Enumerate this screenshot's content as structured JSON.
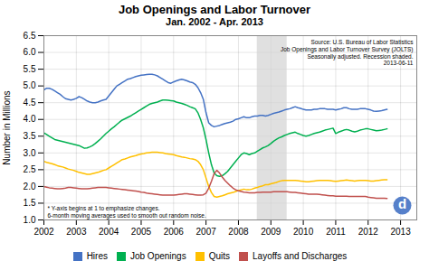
{
  "chart_data": {
    "type": "line",
    "title": "Job Openings and Labor Turnover",
    "subtitle": "Jan. 2002 - Apr. 2013",
    "y_label": "Number in Millions",
    "xlim": [
      2002.0,
      2013.5
    ],
    "xticks": [
      2002,
      2003,
      2004,
      2005,
      2006,
      2007,
      2008,
      2009,
      2010,
      2011,
      2012,
      2013
    ],
    "ylim": [
      1.0,
      6.5
    ],
    "yticks": [
      {
        "value": 1.0,
        "label": "1.0"
      },
      1.5,
      {
        "value": 2.0,
        "label": "2.0"
      },
      2.5,
      {
        "value": 3.0,
        "label": "3.0"
      },
      3.5,
      {
        "value": 4.0,
        "label": "4.0"
      },
      4.5,
      {
        "value": 5.0,
        "label": "5.0"
      },
      5.5,
      {
        "value": 6.0,
        "label": "6.0"
      },
      6.5
    ],
    "grid": true,
    "legend": "bottom",
    "shaded_span": {
      "start": 2008.58,
      "end": 2009.5
    },
    "annotations": [
      {
        "text": "Source: U.S. Bureau of Labor Statistics\nJob Openings and Labor Turnover Survey (JOLTS)\nSeasonally adjusted. Recession shaded.\n2013-06-11"
      },
      {
        "text": "* Y-axis begins at 1 to emphasize changes.\n6-month moving averages used to smooth out random noise."
      },
      {
        "text": "d",
        "color": "#4472C4"
      }
    ],
    "x": [
      2002.0,
      2002.0833333333,
      2002.1666666667,
      2002.25,
      2002.3333333333,
      2002.4166666667,
      2002.5,
      2002.5833333333,
      2002.6666666667,
      2002.75,
      2002.8333333333,
      2002.9166666667,
      2003.0,
      2003.0833333333,
      2003.1666666667,
      2003.25,
      2003.3333333333,
      2003.4166666667,
      2003.5,
      2003.5833333333,
      2003.6666666667,
      2003.75,
      2003.8333333333,
      2003.9166666667,
      2004.0,
      2004.0833333333,
      2004.1666666667,
      2004.25,
      2004.3333333333,
      2004.4166666667,
      2004.5,
      2004.5833333333,
      2004.6666666667,
      2004.75,
      2004.8333333333,
      2004.9166666667,
      2005.0,
      2005.0833333333,
      2005.1666666667,
      2005.25,
      2005.3333333333,
      2005.4166666667,
      2005.5,
      2005.5833333333,
      2005.6666666667,
      2005.75,
      2005.8333333333,
      2005.9166666667,
      2006.0,
      2006.0833333333,
      2006.1666666667,
      2006.25,
      2006.3333333333,
      2006.4166666667,
      2006.5,
      2006.5833333333,
      2006.6666666667,
      2006.75,
      2006.8333333333,
      2006.9166666667,
      2007.0,
      2007.0833333333,
      2007.1666666667,
      2007.25,
      2007.3333333333,
      2007.4166666667,
      2007.5,
      2007.5833333333,
      2007.6666666667,
      2007.75,
      2007.8333333333,
      2007.9166666667,
      2008.0,
      2008.0833333333,
      2008.1666666667,
      2008.25,
      2008.3333333333,
      2008.4166666667,
      2008.5,
      2008.5833333333,
      2008.6666666667,
      2008.75,
      2008.8333333333,
      2008.9166666667,
      2009.0,
      2009.0833333333,
      2009.1666666667,
      2009.25,
      2009.3333333333,
      2009.4166666667,
      2009.5,
      2009.5833333333,
      2009.6666666667,
      2009.75,
      2009.8333333333,
      2009.9166666667,
      2010.0,
      2010.0833333333,
      2010.1666666667,
      2010.25,
      2010.3333333333,
      2010.4166666667,
      2010.5,
      2010.5833333333,
      2010.6666666667,
      2010.75,
      2010.8333333333,
      2010.9166666667,
      2011.0,
      2011.0833333333,
      2011.1666666667,
      2011.25,
      2011.3333333333,
      2011.4166666667,
      2011.5,
      2011.5833333333,
      2011.6666666667,
      2011.75,
      2011.8333333333,
      2011.9166666667,
      2012.0,
      2012.0833333333,
      2012.1666666667,
      2012.25,
      2012.3333333333,
      2012.4166666667,
      2012.5,
      2012.5833333333
    ],
    "series": [
      {
        "name": "Hires",
        "color": "#4472C4",
        "values": [
          4.88,
          4.93,
          4.93,
          4.9,
          4.85,
          4.8,
          4.75,
          4.68,
          4.62,
          4.6,
          4.58,
          4.6,
          4.63,
          4.68,
          4.65,
          4.6,
          4.55,
          4.52,
          4.5,
          4.5,
          4.52,
          4.55,
          4.58,
          4.6,
          4.7,
          4.8,
          4.9,
          5.0,
          5.05,
          5.1,
          5.15,
          5.2,
          5.22,
          5.25,
          5.28,
          5.3,
          5.32,
          5.33,
          5.34,
          5.35,
          5.35,
          5.33,
          5.3,
          5.25,
          5.2,
          5.15,
          5.1,
          5.08,
          5.12,
          5.15,
          5.18,
          5.2,
          5.18,
          5.15,
          5.12,
          5.1,
          5.05,
          4.95,
          4.8,
          4.6,
          4.2,
          3.9,
          3.82,
          3.78,
          3.8,
          3.82,
          3.85,
          3.88,
          3.9,
          3.92,
          3.95,
          4.0,
          4.02,
          4.05,
          4.08,
          4.05,
          4.05,
          4.08,
          4.1,
          4.1,
          4.12,
          4.12,
          4.1,
          4.12,
          4.15,
          4.18,
          4.2,
          4.22,
          4.25,
          4.28,
          4.3,
          4.32,
          4.35,
          4.38,
          4.35,
          4.33,
          4.3,
          4.28,
          4.28,
          4.28,
          4.3,
          4.3,
          4.32,
          4.32,
          4.32,
          4.3,
          4.3,
          4.3,
          4.28,
          4.3,
          4.32,
          4.35,
          4.35,
          4.32,
          4.3,
          4.3,
          4.3,
          4.32,
          4.32,
          4.32,
          4.3,
          4.28,
          4.25,
          4.24,
          4.25,
          4.26,
          4.28,
          4.3
        ]
      },
      {
        "name": "Job Openings",
        "color": "#00B050",
        "values": [
          3.6,
          3.55,
          3.5,
          3.45,
          3.4,
          3.38,
          3.36,
          3.34,
          3.32,
          3.3,
          3.28,
          3.26,
          3.24,
          3.22,
          3.18,
          3.14,
          3.15,
          3.18,
          3.22,
          3.28,
          3.35,
          3.42,
          3.5,
          3.58,
          3.65,
          3.72,
          3.78,
          3.85,
          3.92,
          3.98,
          4.02,
          4.06,
          4.1,
          4.15,
          4.2,
          4.25,
          4.3,
          4.35,
          4.4,
          4.45,
          4.48,
          4.5,
          4.52,
          4.55,
          4.58,
          4.58,
          4.57,
          4.56,
          4.55,
          4.52,
          4.5,
          4.48,
          4.45,
          4.42,
          4.38,
          4.35,
          4.32,
          4.2,
          4.0,
          3.75,
          3.4,
          3.0,
          2.65,
          2.4,
          2.32,
          2.3,
          2.32,
          2.38,
          2.45,
          2.55,
          2.65,
          2.75,
          2.85,
          2.95,
          3.0,
          2.98,
          2.95,
          2.98,
          3.0,
          3.05,
          3.1,
          3.15,
          3.18,
          3.22,
          3.28,
          3.35,
          3.4,
          3.45,
          3.48,
          3.52,
          3.55,
          3.58,
          3.6,
          3.62,
          3.58,
          3.55,
          3.52,
          3.5,
          3.52,
          3.55,
          3.58,
          3.6,
          3.62,
          3.65,
          3.68,
          3.7,
          3.72,
          3.74,
          3.58,
          3.62,
          3.65,
          3.68,
          3.7,
          3.68,
          3.65,
          3.63,
          3.65,
          3.68,
          3.7,
          3.72,
          3.72,
          3.7,
          3.68,
          3.66,
          3.67,
          3.68,
          3.7,
          3.72
        ]
      },
      {
        "name": "Quits",
        "color": "#FFC000",
        "values": [
          2.75,
          2.72,
          2.7,
          2.68,
          2.65,
          2.62,
          2.6,
          2.58,
          2.55,
          2.52,
          2.5,
          2.48,
          2.45,
          2.42,
          2.4,
          2.38,
          2.36,
          2.36,
          2.38,
          2.4,
          2.42,
          2.45,
          2.48,
          2.5,
          2.55,
          2.6,
          2.65,
          2.7,
          2.75,
          2.8,
          2.82,
          2.85,
          2.88,
          2.9,
          2.92,
          2.95,
          2.97,
          2.98,
          3.0,
          3.01,
          3.02,
          3.02,
          3.02,
          3.01,
          3.0,
          2.98,
          2.97,
          2.96,
          2.95,
          2.92,
          2.9,
          2.88,
          2.87,
          2.85,
          2.83,
          2.82,
          2.8,
          2.75,
          2.65,
          2.5,
          2.25,
          2.0,
          1.82,
          1.7,
          1.68,
          1.7,
          1.72,
          1.75,
          1.78,
          1.8,
          1.82,
          1.85,
          1.88,
          1.9,
          1.92,
          1.9,
          1.9,
          1.92,
          1.95,
          1.97,
          2.0,
          2.02,
          2.05,
          2.05,
          2.08,
          2.1,
          2.12,
          2.15,
          2.17,
          2.18,
          2.18,
          2.18,
          2.18,
          2.18,
          2.17,
          2.16,
          2.15,
          2.14,
          2.14,
          2.15,
          2.16,
          2.17,
          2.18,
          2.18,
          2.18,
          2.18,
          2.17,
          2.16,
          2.15,
          2.16,
          2.17,
          2.18,
          2.19,
          2.18,
          2.17,
          2.16,
          2.17,
          2.18,
          2.18,
          2.18,
          2.17,
          2.16,
          2.16,
          2.17,
          2.18,
          2.19,
          2.2,
          2.2
        ]
      },
      {
        "name": "Layoffs and Discharges",
        "color": "#C0504D",
        "values": [
          2.0,
          1.98,
          1.96,
          1.95,
          1.94,
          1.93,
          1.93,
          1.94,
          1.95,
          1.97,
          1.97,
          1.96,
          1.95,
          1.94,
          1.93,
          1.93,
          1.93,
          1.94,
          1.95,
          1.96,
          1.97,
          1.97,
          1.97,
          1.97,
          1.96,
          1.95,
          1.94,
          1.93,
          1.92,
          1.91,
          1.9,
          1.89,
          1.88,
          1.87,
          1.86,
          1.85,
          1.83,
          1.82,
          1.8,
          1.79,
          1.78,
          1.77,
          1.76,
          1.75,
          1.74,
          1.74,
          1.74,
          1.74,
          1.74,
          1.75,
          1.76,
          1.77,
          1.78,
          1.78,
          1.77,
          1.76,
          1.75,
          1.74,
          1.74,
          1.75,
          1.8,
          1.95,
          2.15,
          2.38,
          2.48,
          2.4,
          2.28,
          2.18,
          2.1,
          2.02,
          1.95,
          1.9,
          1.87,
          1.85,
          1.83,
          1.82,
          1.81,
          1.81,
          1.81,
          1.82,
          1.82,
          1.83,
          1.83,
          1.83,
          1.83,
          1.84,
          1.84,
          1.84,
          1.84,
          1.84,
          1.84,
          1.83,
          1.82,
          1.82,
          1.81,
          1.8,
          1.79,
          1.78,
          1.77,
          1.77,
          1.77,
          1.77,
          1.76,
          1.75,
          1.74,
          1.73,
          1.72,
          1.72,
          1.71,
          1.71,
          1.71,
          1.71,
          1.71,
          1.7,
          1.7,
          1.7,
          1.7,
          1.7,
          1.7,
          1.7,
          1.68,
          1.67,
          1.66,
          1.65,
          1.65,
          1.65,
          1.65,
          1.64
        ]
      }
    ]
  }
}
